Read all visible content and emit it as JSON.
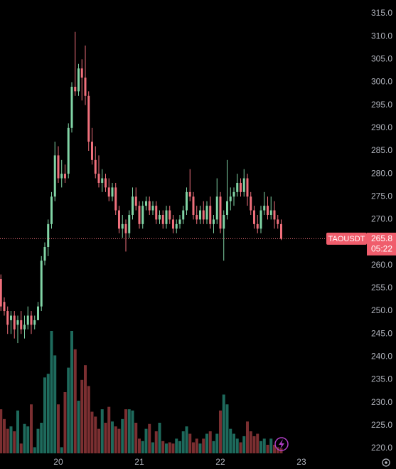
{
  "chart_data": {
    "type": "candlestick",
    "x": [
      -17,
      -16,
      -15,
      -14,
      -13,
      -12,
      -11,
      -10,
      -9,
      -8,
      -7,
      -6,
      -5,
      -4,
      -3,
      -2,
      -1,
      0,
      1,
      2,
      3,
      4,
      5,
      6,
      7,
      8,
      9,
      10,
      11,
      12,
      13,
      14,
      15,
      16,
      17,
      18,
      19,
      20,
      21,
      22,
      23,
      24,
      25,
      26,
      27,
      28,
      29,
      30,
      31,
      32,
      33,
      34,
      35,
      36,
      37,
      38,
      39,
      40,
      41,
      42,
      43,
      44,
      45,
      46,
      47,
      48,
      49,
      50,
      51,
      52,
      53,
      54,
      55,
      56,
      57,
      58,
      59,
      60,
      61,
      62,
      63,
      64,
      65,
      66
    ],
    "open": [
      257,
      252,
      250,
      248,
      249,
      247,
      248,
      246,
      247,
      249,
      247,
      248,
      251,
      261,
      264,
      269,
      275,
      284,
      279,
      280,
      280,
      290,
      299,
      298,
      303,
      301,
      297,
      287,
      283,
      280,
      278,
      279,
      277,
      275,
      277,
      272,
      268,
      269,
      267,
      271,
      275,
      273,
      269,
      273,
      274,
      272,
      273,
      270,
      271,
      269,
      272,
      270,
      268,
      269,
      270,
      272,
      276,
      275,
      271,
      270,
      272,
      270,
      273,
      269,
      270,
      275,
      268,
      271,
      274,
      275,
      276,
      278,
      276,
      279,
      275,
      272,
      269,
      268,
      272,
      273,
      271,
      272,
      270,
      269
    ],
    "high": [
      258,
      253,
      251,
      250,
      250,
      249,
      250,
      249,
      251,
      250,
      249,
      252,
      262,
      265,
      270,
      276,
      287,
      286,
      283,
      282,
      291,
      300,
      311,
      304,
      305,
      308,
      298,
      290,
      286,
      284,
      281,
      280,
      279,
      278,
      278,
      273,
      271,
      270,
      272,
      277,
      277,
      274,
      274,
      275,
      275,
      274,
      274,
      272,
      272,
      273,
      273,
      271,
      270,
      271,
      273,
      277,
      281,
      276,
      273,
      273,
      274,
      274,
      275,
      271,
      279,
      276,
      272,
      283,
      277,
      277,
      280,
      279,
      281,
      280,
      276,
      273,
      271,
      273,
      276,
      275,
      275,
      274,
      271,
      270
    ],
    "low": [
      250,
      249,
      245,
      245,
      244,
      243,
      245,
      244,
      246,
      245,
      246,
      248,
      250,
      260,
      262,
      268,
      274,
      278,
      277,
      278,
      279,
      289,
      297,
      297,
      296,
      295,
      285,
      282,
      279,
      277,
      276,
      276,
      274,
      274,
      271,
      267,
      266,
      263,
      266,
      270,
      272,
      268,
      268,
      272,
      271,
      271,
      269,
      269,
      268,
      268,
      269,
      267,
      267,
      268,
      269,
      271,
      274,
      270,
      269,
      269,
      269,
      269,
      268,
      267,
      269,
      267,
      261,
      270,
      272,
      273,
      275,
      275,
      275,
      273,
      271,
      268,
      267,
      267,
      271,
      270,
      270,
      268,
      268,
      265.5
    ],
    "close": [
      251,
      250,
      247,
      249,
      246,
      248,
      246,
      247,
      249,
      247,
      248,
      251,
      261,
      264,
      269,
      275,
      284,
      279,
      280,
      279,
      290,
      299,
      298,
      303,
      301,
      297,
      287,
      283,
      280,
      278,
      279,
      277,
      275,
      277,
      272,
      268,
      269,
      267,
      271,
      275,
      273,
      269,
      273,
      274,
      272,
      273,
      270,
      271,
      269,
      272,
      270,
      268,
      269,
      270,
      272,
      276,
      275,
      271,
      270,
      272,
      270,
      273,
      269,
      270,
      275,
      268,
      271,
      274,
      275,
      276,
      278,
      276,
      279,
      275,
      272,
      269,
      268,
      272,
      273,
      271,
      272,
      270,
      269,
      265.8
    ],
    "volume": [
      36,
      28,
      20,
      22,
      18,
      35,
      8,
      24,
      22,
      40,
      5,
      20,
      25,
      62,
      65,
      100,
      80,
      40,
      5,
      50,
      70,
      100,
      85,
      43,
      60,
      72,
      55,
      34,
      30,
      20,
      36,
      25,
      38,
      26,
      22,
      20,
      28,
      36,
      36,
      35,
      25,
      12,
      10,
      20,
      24,
      9,
      18,
      25,
      10,
      8,
      9,
      8,
      12,
      10,
      18,
      22,
      16,
      9,
      12,
      8,
      12,
      16,
      18,
      10,
      16,
      35,
      48,
      40,
      20,
      16,
      12,
      9,
      14,
      26,
      18,
      14,
      16,
      10,
      12,
      7,
      12,
      7,
      5,
      4
    ],
    "vlim": [
      0,
      100
    ],
    "up_color": "#81d4a5",
    "down_color": "#f0707c",
    "up_volume_color": "#1e6a5c",
    "down_volume_color": "#7b2f31",
    "xlim": [
      -17.26,
      91.16
    ],
    "xticks": [
      {
        "value": 0,
        "label": "20"
      },
      {
        "value": 24,
        "label": "21"
      },
      {
        "value": 48,
        "label": "22"
      },
      {
        "value": 72,
        "label": "23"
      }
    ],
    "ylim": [
      220,
      315
    ],
    "yticks": [
      {
        "value": 220,
        "label": "220.0"
      },
      {
        "value": 225,
        "label": "225.0"
      },
      {
        "value": 230,
        "label": "230.0"
      },
      {
        "value": 235,
        "label": "235.0"
      },
      {
        "value": 240,
        "label": "240.0"
      },
      {
        "value": 245,
        "label": "245.0"
      },
      {
        "value": 250,
        "label": "250.0"
      },
      {
        "value": 255,
        "label": "255.0"
      },
      {
        "value": 260,
        "label": "260.0"
      },
      {
        "value": 265,
        "label": "265.0"
      },
      {
        "value": 270,
        "label": "270.0"
      },
      {
        "value": 275,
        "label": "275.0"
      },
      {
        "value": 280,
        "label": "280.0"
      },
      {
        "value": 285,
        "label": "285.0"
      },
      {
        "value": 290,
        "label": "290.0"
      },
      {
        "value": 295,
        "label": "295.0"
      },
      {
        "value": 300,
        "label": "300.0"
      },
      {
        "value": 305,
        "label": "305.0"
      },
      {
        "value": 310,
        "label": "310.0"
      },
      {
        "value": 315,
        "label": "315.0"
      }
    ],
    "price_tag": {
      "symbol": "TAOUSDT",
      "price": 265.8,
      "countdown": "05:22"
    }
  }
}
